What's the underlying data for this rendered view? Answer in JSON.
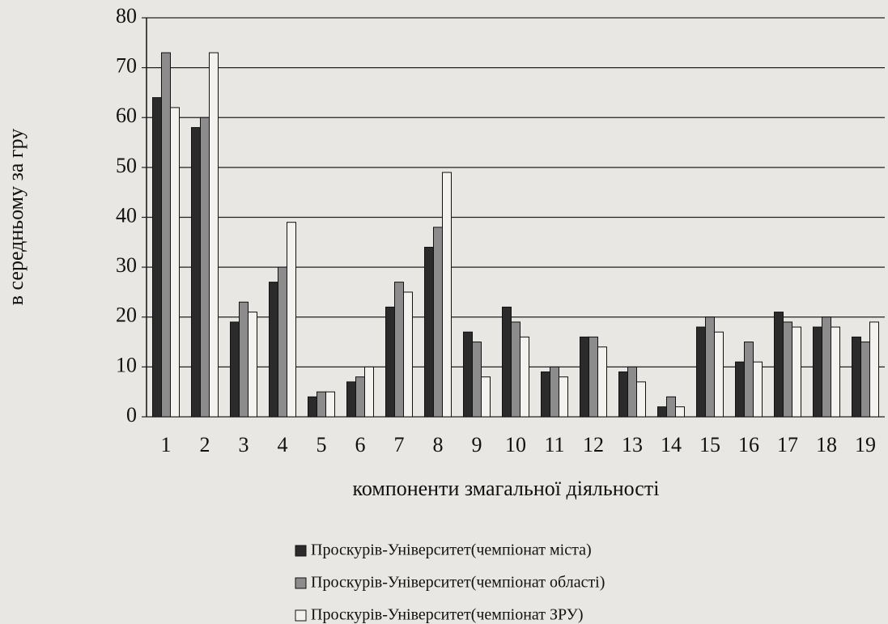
{
  "chart_data": {
    "type": "bar",
    "ylabel": "в середньому за гру",
    "xlabel": "компоненти змагальної діяльності",
    "categories": [
      "1",
      "2",
      "3",
      "4",
      "5",
      "6",
      "7",
      "8",
      "9",
      "10",
      "11",
      "12",
      "13",
      "14",
      "15",
      "16",
      "17",
      "18",
      "19"
    ],
    "series": [
      {
        "name": "Проскурів-Університет(чемпіонат міста)",
        "color": "#2b2b2b",
        "values": [
          64,
          58,
          19,
          27,
          4,
          7,
          22,
          34,
          17,
          22,
          9,
          16,
          9,
          2,
          18,
          11,
          21,
          18,
          16
        ]
      },
      {
        "name": "Проскурів-Університет(чемпіонат області)",
        "color": "#8c8c8c",
        "values": [
          73,
          60,
          23,
          30,
          5,
          8,
          27,
          38,
          15,
          19,
          10,
          16,
          10,
          4,
          20,
          15,
          19,
          20,
          15
        ]
      },
      {
        "name": "Проскурів-Університет(чемпіонат ЗРУ)",
        "color": "#f3f2ef",
        "values": [
          62,
          73,
          21,
          39,
          5,
          10,
          25,
          49,
          8,
          16,
          8,
          14,
          7,
          2,
          17,
          11,
          18,
          18,
          19
        ]
      }
    ],
    "ylim": [
      0,
      80
    ],
    "yticks": [
      0,
      10,
      20,
      30,
      40,
      50,
      60,
      70,
      80
    ],
    "grid": true
  }
}
